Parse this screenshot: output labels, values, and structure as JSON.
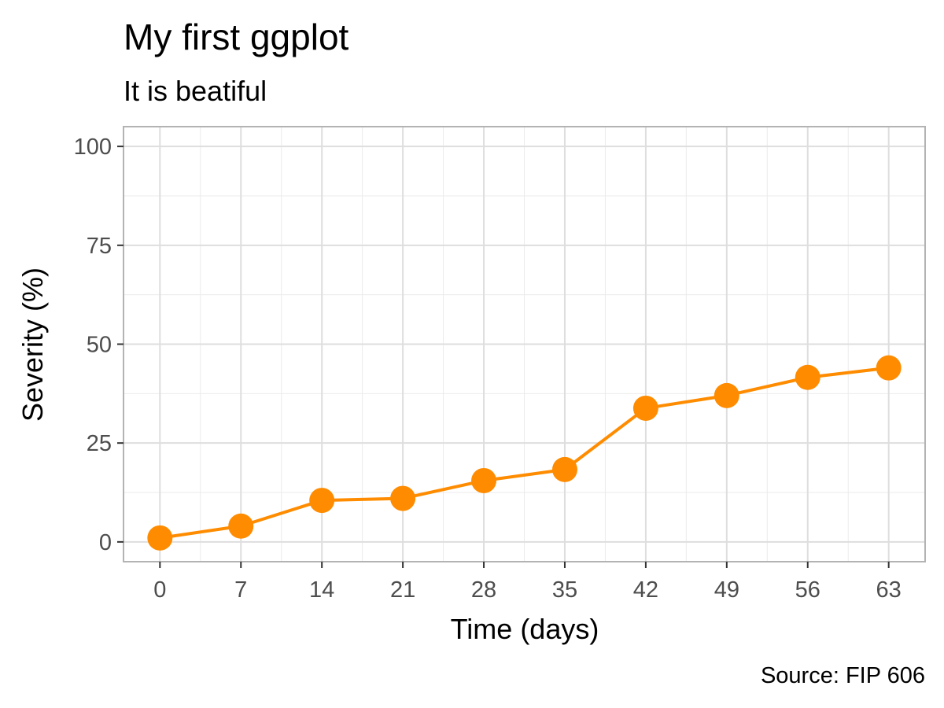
{
  "chart_data": {
    "type": "line",
    "title": "My first ggplot",
    "subtitle": "It is beatiful",
    "xlabel": "Time (days)",
    "ylabel": "Severity (%)",
    "caption": "Source: FIP 606",
    "x": [
      0,
      7,
      14,
      21,
      28,
      35,
      42,
      49,
      56,
      63
    ],
    "y": [
      1,
      4,
      10.5,
      11,
      15.5,
      18.3,
      33.8,
      37,
      41.6,
      44
    ],
    "xlim": [
      -3.15,
      66.15
    ],
    "ylim": [
      -5,
      105
    ],
    "xticks": [
      0,
      7,
      14,
      21,
      28,
      35,
      42,
      49,
      56,
      63
    ],
    "yticks": [
      0,
      25,
      50,
      75,
      100
    ],
    "grid": true,
    "legend": "none",
    "color": "#ff8c00",
    "grid_color": "#ebebeb",
    "panel_border_color": "#b3b3b3"
  }
}
